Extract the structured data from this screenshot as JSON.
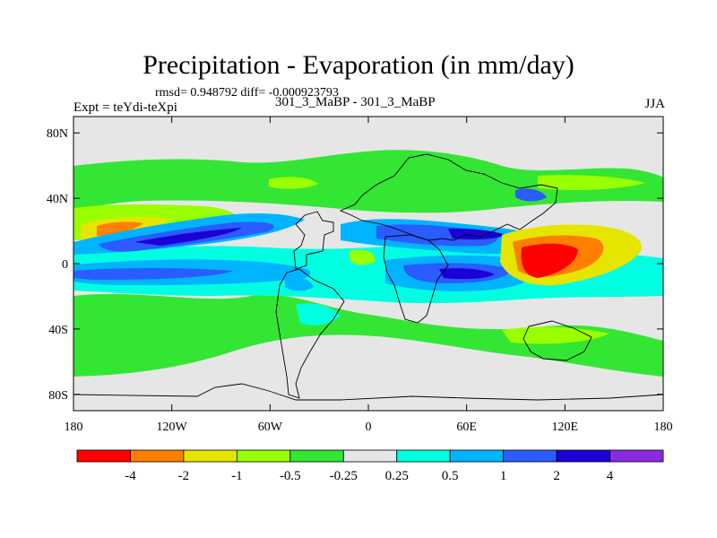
{
  "title": "Precipitation - Evaporation (in mm/day)",
  "stats": "rmsd= 0.948792 diff= -0.000923793",
  "experiment": "Expt = teYdi-teXpi",
  "case": "301_3_MaBP - 301_3_MaBP",
  "season": "JJA",
  "axes": {
    "lat_ticks": [
      "80N",
      "40N",
      "0",
      "40S",
      "80S"
    ],
    "lon_ticks": [
      "180",
      "120W",
      "60W",
      "0",
      "60E",
      "120E",
      "180"
    ]
  },
  "colorbar": {
    "labels": [
      "-4",
      "-2",
      "-1",
      "-0.5",
      "-0.25",
      "0.25",
      "0.5",
      "1",
      "2",
      "4"
    ],
    "colors": [
      "#ff0000",
      "#ff7f00",
      "#e5e500",
      "#9aff00",
      "#33e633",
      "#e6e6e6",
      "#00ffe0",
      "#00b4ff",
      "#2a5cff",
      "#1a00d6",
      "#8a2be2"
    ]
  },
  "fill_colors": {
    "background": "#e6e6e6",
    "neg_small": "#33e633",
    "neg_mid": "#9aff00",
    "neg_large": "#e5e500",
    "neg_xlarge": "#ff7f00",
    "neg_max": "#ff0000",
    "pos_small": "#00ffe0",
    "pos_mid": "#00b4ff",
    "pos_large": "#2a5cff",
    "pos_xlarge": "#1a00d6"
  }
}
